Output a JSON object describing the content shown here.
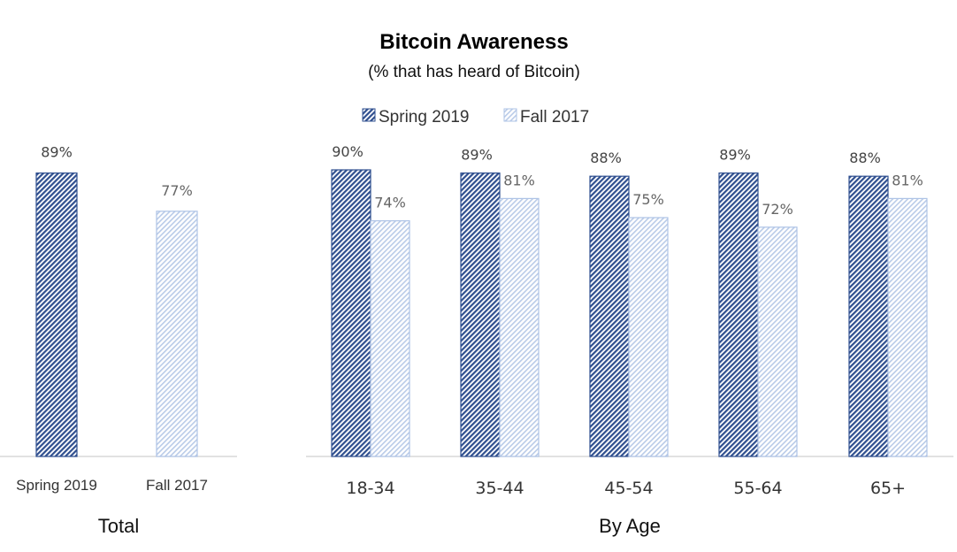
{
  "chart_data": [
    {
      "title": "Bitcoin Awareness",
      "subtitle": "(% that has heard of Bitcoin)",
      "type": "bar",
      "group_label": "Total",
      "categories": [
        "Spring 2019",
        "Fall 2017"
      ],
      "values": [
        89,
        77
      ],
      "value_labels": [
        "89%",
        "77%"
      ],
      "colors": [
        "#2f4f8f",
        "#aec3e6"
      ],
      "ylim": [
        0,
        100
      ],
      "grid": false
    },
    {
      "type": "bar",
      "group_label": "By Age",
      "categories": [
        "18-34",
        "35-44",
        "45-54",
        "55-64",
        "65+"
      ],
      "legend_position": "top-center",
      "series": [
        {
          "name": "Spring 2019",
          "values": [
            90,
            89,
            88,
            89,
            88
          ],
          "value_labels": [
            "90%",
            "89%",
            "88%",
            "89%",
            "88%"
          ],
          "color": "#2f4f8f"
        },
        {
          "name": "Fall 2017",
          "values": [
            74,
            81,
            75,
            72,
            81
          ],
          "value_labels": [
            "74%",
            "81%",
            "75%",
            "72%",
            "81%"
          ],
          "color": "#aec3e6"
        }
      ],
      "ylim": [
        0,
        100
      ],
      "grid": false
    }
  ]
}
